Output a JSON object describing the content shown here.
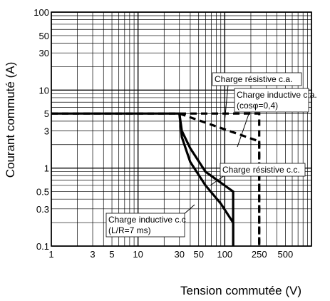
{
  "chart_data": {
    "type": "line",
    "title": "",
    "xlabel": "Tension commutée (V)",
    "ylabel": "Courant commuté (A)",
    "xscale": "log",
    "yscale": "log",
    "xlim": [
      1,
      1000
    ],
    "ylim": [
      0.1,
      100
    ],
    "grid": true,
    "x_ticks": [
      {
        "v": 1,
        "label": "1"
      },
      {
        "v": 3,
        "label": "3"
      },
      {
        "v": 5,
        "label": "5"
      },
      {
        "v": 10,
        "label": "10"
      },
      {
        "v": 30,
        "label": "30"
      },
      {
        "v": 50,
        "label": "50"
      },
      {
        "v": 100,
        "label": "100"
      },
      {
        "v": 250,
        "label": "250"
      },
      {
        "v": 500,
        "label": "500"
      }
    ],
    "y_ticks": [
      {
        "v": 0.1,
        "label": "0.1"
      },
      {
        "v": 0.3,
        "label": "0.3"
      },
      {
        "v": 0.5,
        "label": "0.5"
      },
      {
        "v": 1,
        "label": "1"
      },
      {
        "v": 3,
        "label": "3"
      },
      {
        "v": 5,
        "label": "5"
      },
      {
        "v": 10,
        "label": "10"
      },
      {
        "v": 30,
        "label": "30"
      },
      {
        "v": 50,
        "label": "50"
      },
      {
        "v": 100,
        "label": "100"
      }
    ],
    "series": [
      {
        "name": "Charge résistive c.a.",
        "style": "dashed",
        "x": [
          1,
          250,
          250
        ],
        "y": [
          5,
          5,
          0.1
        ]
      },
      {
        "name": "Charge inductive c.a. (cosφ=0,4)",
        "style": "dashed",
        "x": [
          30,
          250,
          250
        ],
        "y": [
          5,
          2.2,
          0.1
        ]
      },
      {
        "name": "Charge résistive c.c.",
        "style": "solid",
        "x": [
          1,
          30,
          32,
          40,
          60,
          125,
          125
        ],
        "y": [
          5,
          5,
          3.0,
          1.8,
          0.9,
          0.5,
          0.1
        ]
      },
      {
        "name": "Charge inductive c.c (L/R=7 ms)",
        "style": "solid",
        "x": [
          30,
          32,
          40,
          60,
          90,
          125,
          125
        ],
        "y": [
          5,
          2.5,
          1.2,
          0.6,
          0.35,
          0.2,
          0.1
        ]
      }
    ],
    "annotations": [
      {
        "lines": [
          "Charge résistive c.a."
        ],
        "box": true
      },
      {
        "lines": [
          "Charge inductive c.a.",
          "(cosφ=0,4)"
        ],
        "box": true
      },
      {
        "lines": [
          "Charge résistive c.c."
        ],
        "box": true
      },
      {
        "lines": [
          "Charge inductive c.c",
          "(L/R=7 ms)"
        ],
        "box": true
      }
    ]
  }
}
